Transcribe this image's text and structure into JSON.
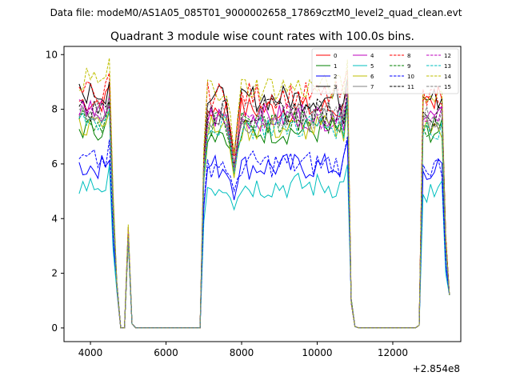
{
  "chart_data": {
    "type": "line",
    "suptitle": "Data file: modeM0/AS1A05_085T01_9000002658_17869cztM0_level2_quad_clean.evt",
    "title": "Quadrant 3 module wise count rates with 100.0s bins.",
    "xlabel": "",
    "ylabel": "",
    "x_offset_label": "+2.854e8",
    "xlim": [
      3300,
      13800
    ],
    "ylim": [
      -0.5,
      10.3
    ],
    "x_ticks": [
      4000,
      6000,
      8000,
      10000,
      12000
    ],
    "y_ticks": [
      0,
      2,
      4,
      6,
      8,
      10
    ],
    "grid": false,
    "legend_position": "top-right",
    "segments": [
      {
        "start": 3700,
        "end": 4800
      },
      {
        "start": 6900,
        "end": 10900
      },
      {
        "start": 12700,
        "end": 13500
      }
    ],
    "series": [
      {
        "name": "0",
        "color": "#ff0000",
        "dash": "solid",
        "level": 8.3,
        "a2": 8.0,
        "a3": 8.4
      },
      {
        "name": "1",
        "color": "#008000",
        "dash": "solid",
        "level": 7.3,
        "a2": 7.2,
        "a3": 7.2
      },
      {
        "name": "2",
        "color": "#0000ff",
        "dash": "solid",
        "level": 5.9,
        "a2": 5.9,
        "a3": 5.8
      },
      {
        "name": "3",
        "color": "#000000",
        "dash": "solid",
        "level": 8.6,
        "a2": 8.4,
        "a3": 8.4
      },
      {
        "name": "4",
        "color": "#bf00bf",
        "dash": "solid",
        "level": 8.1,
        "a2": 7.7,
        "a3": 7.7
      },
      {
        "name": "5",
        "color": "#00bfbf",
        "dash": "solid",
        "level": 5.2,
        "a2": 5.2,
        "a3": 5.0
      },
      {
        "name": "6",
        "color": "#bfbf00",
        "dash": "solid",
        "level": 7.4,
        "a2": 7.3,
        "a3": 7.3
      },
      {
        "name": "7",
        "color": "#808080",
        "dash": "solid",
        "level": 7.8,
        "a2": 7.6,
        "a3": 7.6
      },
      {
        "name": "8",
        "color": "#ff0000",
        "dash": "dashed",
        "level": 8.6,
        "a2": 8.5,
        "a3": 8.5
      },
      {
        "name": "9",
        "color": "#008000",
        "dash": "dashed",
        "level": 7.6,
        "a2": 7.5,
        "a3": 7.4
      },
      {
        "name": "10",
        "color": "#0000ff",
        "dash": "dashed",
        "level": 6.1,
        "a2": 6.0,
        "a3": 5.9
      },
      {
        "name": "11",
        "color": "#000000",
        "dash": "dashed",
        "level": 8.0,
        "a2": 7.9,
        "a3": 7.8
      },
      {
        "name": "12",
        "color": "#bf00bf",
        "dash": "dashed",
        "level": 7.9,
        "a2": 7.7,
        "a3": 7.7
      },
      {
        "name": "13",
        "color": "#00bfbf",
        "dash": "dashed",
        "level": 7.6,
        "a2": 7.4,
        "a3": 7.3
      },
      {
        "name": "14",
        "color": "#bfbf00",
        "dash": "dashed",
        "level": 9.1,
        "a2": 8.8,
        "a3": 8.4
      },
      {
        "name": "15",
        "color": "#808080",
        "dash": "dashed",
        "level": 8.0,
        "a2": 7.8,
        "a3": 7.7
      }
    ]
  }
}
